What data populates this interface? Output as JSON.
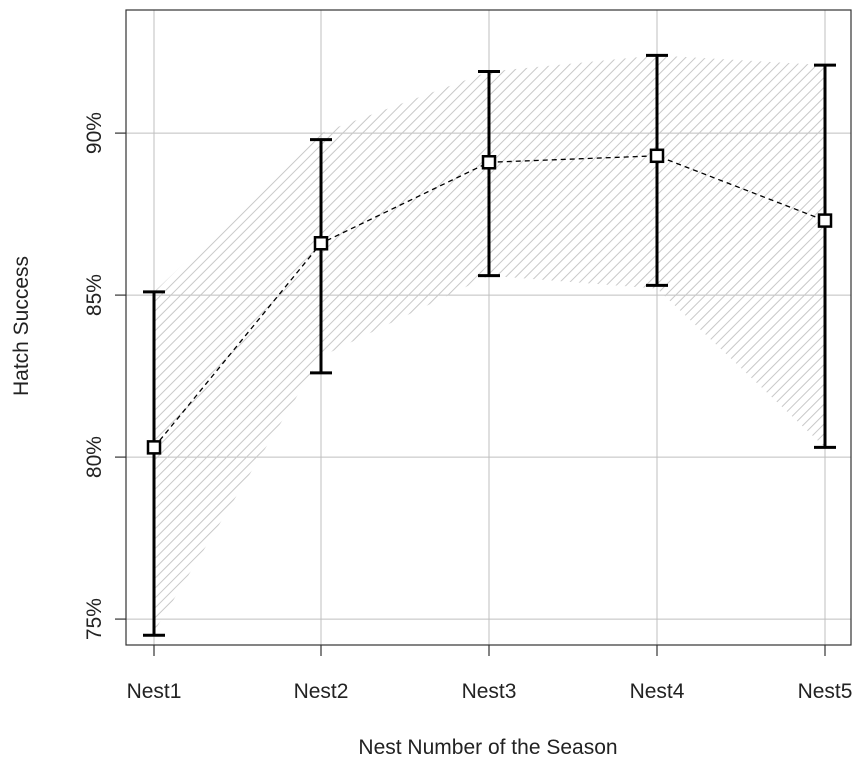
{
  "chart_data": {
    "type": "line",
    "title": "",
    "xlabel": "Nest Number of the Season",
    "ylabel": "Hatch Success",
    "categories": [
      "Nest1",
      "Nest2",
      "Nest3",
      "Nest4",
      "Nest5"
    ],
    "series": [
      {
        "values": [
          80.3,
          86.6,
          89.1,
          89.3,
          87.3
        ],
        "error_lower": [
          74.5,
          82.6,
          85.6,
          85.3,
          80.3
        ],
        "error_upper": [
          85.1,
          89.8,
          91.9,
          92.4,
          92.1
        ],
        "band_lower": [
          74.6,
          83.1,
          85.6,
          85.2,
          80.3
        ],
        "band_upper": [
          85.1,
          90.0,
          91.9,
          92.4,
          92.1
        ],
        "marker": "open-square",
        "line_style": "dashed"
      }
    ],
    "ylim": [
      74.2,
      93.8
    ],
    "y_ticks": [
      75,
      80,
      85,
      90
    ],
    "y_tick_labels": [
      "75%",
      "80%",
      "85%",
      "90%"
    ],
    "grid": true,
    "legend": "none",
    "colors": {
      "band": "#cccccc",
      "line": "#000000",
      "grid": "#bfbfbf"
    }
  }
}
